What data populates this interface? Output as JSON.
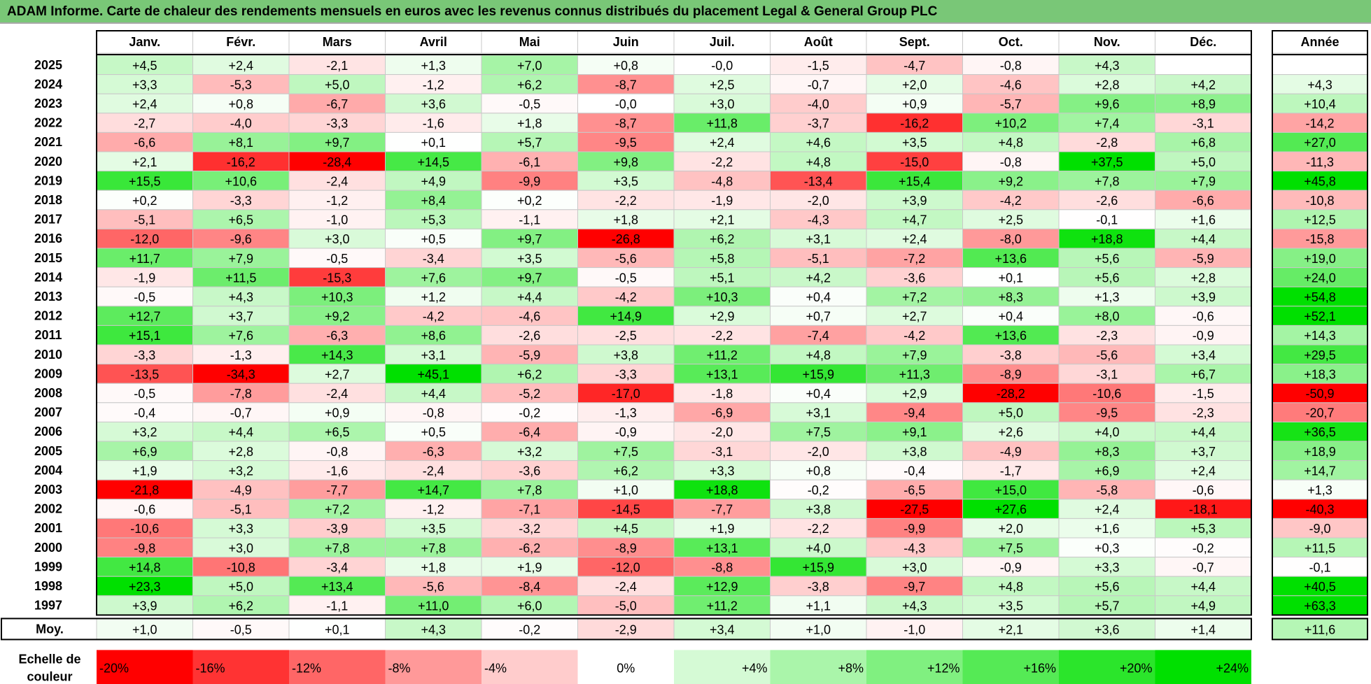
{
  "title": "ADAM Informe. Carte de chaleur des rendements mensuels en euros avec les revenus connus distribués du placement Legal & General Group PLC",
  "chart_data": {
    "type": "heatmap",
    "title": "ADAM Informe. Carte de chaleur des rendements mensuels en euros avec les revenus connus distribués du placement Legal & General Group PLC",
    "months": [
      "Janv.",
      "Févr.",
      "Mars",
      "Avril",
      "Mai",
      "Juin",
      "Juil.",
      "Août",
      "Sept.",
      "Oct.",
      "Nov.",
      "Déc."
    ],
    "year_header": "Année",
    "rows": [
      {
        "year": "2025",
        "values": [
          "+4,5",
          "+2,4",
          "-2,1",
          "+1,3",
          "+7,0",
          "+0,8",
          "-0,0",
          "-1,5",
          "-4,7",
          "-0,8",
          "+4,3",
          ""
        ],
        "annual": ""
      },
      {
        "year": "2024",
        "values": [
          "+3,3",
          "-5,3",
          "+5,0",
          "-1,2",
          "+6,2",
          "-8,7",
          "+2,5",
          "-0,7",
          "+2,0",
          "-4,6",
          "+2,8",
          "+4,2"
        ],
        "annual": "+4,3"
      },
      {
        "year": "2023",
        "values": [
          "+2,4",
          "+0,8",
          "-6,7",
          "+3,6",
          "-0,5",
          "-0,0",
          "+3,0",
          "-4,0",
          "+0,9",
          "-5,7",
          "+9,6",
          "+8,9"
        ],
        "annual": "+10,4"
      },
      {
        "year": "2022",
        "values": [
          "-2,7",
          "-4,0",
          "-3,3",
          "-1,6",
          "+1,8",
          "-8,7",
          "+11,8",
          "-3,7",
          "-16,2",
          "+10,2",
          "+7,4",
          "-3,1"
        ],
        "annual": "-14,2"
      },
      {
        "year": "2021",
        "values": [
          "-6,6",
          "+8,1",
          "+9,7",
          "+0,1",
          "+5,7",
          "-9,5",
          "+2,4",
          "+4,6",
          "+3,5",
          "+4,8",
          "-2,8",
          "+6,8"
        ],
        "annual": "+27,0"
      },
      {
        "year": "2020",
        "values": [
          "+2,1",
          "-16,2",
          "-28,4",
          "+14,5",
          "-6,1",
          "+9,8",
          "-2,2",
          "+4,8",
          "-15,0",
          "-0,8",
          "+37,5",
          "+5,0"
        ],
        "annual": "-11,3"
      },
      {
        "year": "2019",
        "values": [
          "+15,5",
          "+10,6",
          "-2,4",
          "+4,9",
          "-9,9",
          "+3,5",
          "-4,8",
          "-13,4",
          "+15,4",
          "+9,2",
          "+7,8",
          "+7,9"
        ],
        "annual": "+45,8"
      },
      {
        "year": "2018",
        "values": [
          "+0,2",
          "-3,3",
          "-1,2",
          "+8,4",
          "+0,2",
          "-2,2",
          "-1,9",
          "-2,0",
          "+3,9",
          "-4,2",
          "-2,6",
          "-6,6"
        ],
        "annual": "-10,8"
      },
      {
        "year": "2017",
        "values": [
          "-5,1",
          "+6,5",
          "-1,0",
          "+5,3",
          "-1,1",
          "+1,8",
          "+2,1",
          "-4,3",
          "+4,7",
          "+2,5",
          "-0,1",
          "+1,6"
        ],
        "annual": "+12,5"
      },
      {
        "year": "2016",
        "values": [
          "-12,0",
          "-9,6",
          "+3,0",
          "+0,5",
          "+9,7",
          "-26,8",
          "+6,2",
          "+3,1",
          "+2,4",
          "-8,0",
          "+18,8",
          "+4,4"
        ],
        "annual": "-15,8"
      },
      {
        "year": "2015",
        "values": [
          "+11,7",
          "+7,9",
          "-0,5",
          "-3,4",
          "+3,5",
          "-5,6",
          "+5,8",
          "-5,1",
          "-7,2",
          "+13,6",
          "+5,6",
          "-5,9"
        ],
        "annual": "+19,0"
      },
      {
        "year": "2014",
        "values": [
          "-1,9",
          "+11,5",
          "-15,3",
          "+7,6",
          "+9,7",
          "-0,5",
          "+5,1",
          "+4,2",
          "-3,6",
          "+0,1",
          "+5,6",
          "+2,8"
        ],
        "annual": "+24,0"
      },
      {
        "year": "2013",
        "values": [
          "-0,5",
          "+4,3",
          "+10,3",
          "+1,2",
          "+4,4",
          "-4,2",
          "+10,3",
          "+0,4",
          "+7,2",
          "+8,3",
          "+1,3",
          "+3,9"
        ],
        "annual": "+54,8"
      },
      {
        "year": "2012",
        "values": [
          "+12,7",
          "+3,7",
          "+9,2",
          "-4,2",
          "-4,6",
          "+14,9",
          "+2,9",
          "+0,7",
          "+2,7",
          "+0,4",
          "+8,0",
          "-0,6"
        ],
        "annual": "+52,1"
      },
      {
        "year": "2011",
        "values": [
          "+15,1",
          "+7,6",
          "-6,3",
          "+8,6",
          "-2,6",
          "-2,5",
          "-2,2",
          "-7,4",
          "-4,2",
          "+13,6",
          "-2,3",
          "-0,9"
        ],
        "annual": "+14,3"
      },
      {
        "year": "2010",
        "values": [
          "-3,3",
          "-1,3",
          "+14,3",
          "+3,1",
          "-5,9",
          "+3,8",
          "+11,2",
          "+4,8",
          "+7,9",
          "-3,8",
          "-5,6",
          "+3,4"
        ],
        "annual": "+29,5"
      },
      {
        "year": "2009",
        "values": [
          "-13,5",
          "-34,3",
          "+2,7",
          "+45,1",
          "+6,2",
          "-3,3",
          "+13,1",
          "+15,9",
          "+11,3",
          "-8,9",
          "-3,1",
          "+6,7"
        ],
        "annual": "+18,3"
      },
      {
        "year": "2008",
        "values": [
          "-0,5",
          "-7,8",
          "-2,4",
          "+4,4",
          "-5,2",
          "-17,0",
          "-1,8",
          "+0,4",
          "+2,9",
          "-28,2",
          "-10,6",
          "-1,5"
        ],
        "annual": "-50,9"
      },
      {
        "year": "2007",
        "values": [
          "-0,4",
          "-0,7",
          "+0,9",
          "-0,8",
          "-0,2",
          "-1,3",
          "-6,9",
          "+3,1",
          "-9,4",
          "+5,0",
          "-9,5",
          "-2,3"
        ],
        "annual": "-20,7"
      },
      {
        "year": "2006",
        "values": [
          "+3,2",
          "+4,4",
          "+6,5",
          "+0,5",
          "-6,4",
          "-0,9",
          "-2,0",
          "+7,5",
          "+9,1",
          "+2,6",
          "+4,0",
          "+4,4"
        ],
        "annual": "+36,5"
      },
      {
        "year": "2005",
        "values": [
          "+6,9",
          "+2,8",
          "-0,8",
          "-6,3",
          "+3,2",
          "+7,5",
          "-3,1",
          "-2,0",
          "+3,8",
          "-4,9",
          "+8,3",
          "+3,7"
        ],
        "annual": "+18,9"
      },
      {
        "year": "2004",
        "values": [
          "+1,9",
          "+3,2",
          "-1,6",
          "-2,4",
          "-3,6",
          "+6,2",
          "+3,3",
          "+0,8",
          "-0,4",
          "-1,7",
          "+6,9",
          "+2,4"
        ],
        "annual": "+14,7"
      },
      {
        "year": "2003",
        "values": [
          "-21,8",
          "-4,9",
          "-7,7",
          "+14,7",
          "+7,8",
          "+1,0",
          "+18,8",
          "-0,2",
          "-6,5",
          "+15,0",
          "-5,8",
          "-0,6"
        ],
        "annual": "+1,3"
      },
      {
        "year": "2002",
        "values": [
          "-0,6",
          "-5,1",
          "+7,2",
          "-1,2",
          "-7,1",
          "-14,5",
          "-7,7",
          "+3,8",
          "-27,5",
          "+27,6",
          "+2,4",
          "-18,1"
        ],
        "annual": "-40,3"
      },
      {
        "year": "2001",
        "values": [
          "-10,6",
          "+3,3",
          "-3,9",
          "+3,5",
          "-3,2",
          "+4,5",
          "+1,9",
          "-2,2",
          "-9,9",
          "+2,0",
          "+1,6",
          "+5,3"
        ],
        "annual": "-9,0"
      },
      {
        "year": "2000",
        "values": [
          "-9,8",
          "+3,0",
          "+7,8",
          "+7,8",
          "-6,2",
          "-8,9",
          "+13,1",
          "+4,0",
          "-4,3",
          "+7,5",
          "+0,3",
          "-0,2"
        ],
        "annual": "+11,5"
      },
      {
        "year": "1999",
        "values": [
          "+14,8",
          "-10,8",
          "-3,4",
          "+1,8",
          "+1,9",
          "-12,0",
          "-8,8",
          "+15,9",
          "+3,0",
          "-0,9",
          "+3,3",
          "-0,7"
        ],
        "annual": "-0,1"
      },
      {
        "year": "1998",
        "values": [
          "+23,3",
          "+5,0",
          "+13,4",
          "-5,6",
          "-8,4",
          "-2,4",
          "+12,9",
          "-3,8",
          "-9,7",
          "+4,8",
          "+5,6",
          "+4,4"
        ],
        "annual": "+40,5"
      },
      {
        "year": "1997",
        "values": [
          "+3,9",
          "+6,2",
          "-1,1",
          "+11,0",
          "+6,0",
          "-5,0",
          "+11,2",
          "+1,1",
          "+4,3",
          "+3,5",
          "+5,7",
          "+4,9"
        ],
        "annual": "+63,3"
      }
    ],
    "average": {
      "label": "Moy.",
      "values": [
        "+1,0",
        "-0,5",
        "+0,1",
        "+4,3",
        "-0,2",
        "-2,9",
        "+3,4",
        "+1,0",
        "-1,0",
        "+2,1",
        "+3,6",
        "+1,4"
      ],
      "annual": "+11,6"
    },
    "scale": {
      "label": [
        "Echelle de",
        "couleur"
      ],
      "items": [
        {
          "label": "-20%",
          "value": -20
        },
        {
          "label": "-16%",
          "value": -16
        },
        {
          "label": "-12%",
          "value": -12
        },
        {
          "label": "-8%",
          "value": -8
        },
        {
          "label": "-4%",
          "value": -4
        },
        {
          "label": "0%",
          "value": 0
        },
        {
          "label": "+4%",
          "value": 4
        },
        {
          "label": "+8%",
          "value": 8
        },
        {
          "label": "+12%",
          "value": 12
        },
        {
          "label": "+16%",
          "value": 16
        },
        {
          "label": "+20%",
          "value": 20
        },
        {
          "label": "+24%",
          "value": 24
        }
      ]
    },
    "colors": {
      "negative_max": "#ff0000",
      "positive_max": "#00e000",
      "neutral": "#ffffff",
      "title_background": "#79c777",
      "grid": "#c8c8c8",
      "border": "#000000"
    }
  }
}
